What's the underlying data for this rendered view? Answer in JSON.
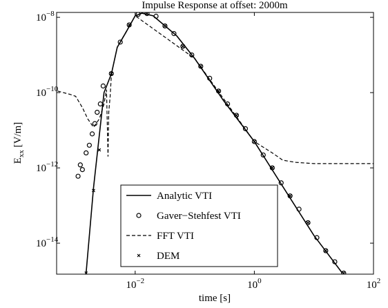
{
  "chart_data": {
    "type": "line",
    "title": "Impulse Response at offset: 2000m",
    "xlabel": "time [s]",
    "ylabel": "Exx  [V/m]",
    "xscale": "log",
    "yscale": "log",
    "xlim": [
      0.00048,
      100
    ],
    "ylim": [
      1.5e-15,
      1.35e-08
    ],
    "xticks": [
      {
        "value": 0.01,
        "label": "10−2"
      },
      {
        "value": 1,
        "label": "100"
      },
      {
        "value": 100,
        "label": "102"
      }
    ],
    "yticks": [
      {
        "value": 1e-14,
        "label": "10−14"
      },
      {
        "value": 1e-12,
        "label": "10−12"
      },
      {
        "value": 1e-10,
        "label": "10−10"
      },
      {
        "value": 1e-08,
        "label": "10−8"
      }
    ],
    "legend": "lower center",
    "series": [
      {
        "name": "Analytic VTI",
        "color": "#000000",
        "style": "solid",
        "x": [
          0.0015,
          0.002,
          0.003,
          0.004,
          0.005,
          0.007,
          0.01,
          0.013,
          0.02,
          0.05,
          0.1,
          0.3,
          1,
          3,
          10,
          30
        ],
        "values": [
          1.6e-15,
          3e-13,
          1e-10,
          3.2e-10,
          1.6e-09,
          4e-09,
          1.1e-08,
          1.29e-08,
          1.1e-08,
          3.2e-09,
          8e-10,
          6.3e-11,
          5e-12,
          3.2e-13,
          1.6e-14,
          1.6e-15
        ]
      },
      {
        "name": "Gaver−Stehfest VTI",
        "color": "#000000",
        "style": "circle",
        "x": [
          0.0011,
          0.0012,
          0.0013,
          0.0015,
          0.0017,
          0.0019,
          0.0021,
          0.0023,
          0.0026,
          0.0029,
          0.00398,
          0.00562,
          0.00794,
          0.0112,
          0.0158,
          0.0224,
          0.0316,
          0.0447,
          0.0631,
          0.0891,
          0.126,
          0.178,
          0.251,
          0.355,
          0.501,
          0.708,
          1,
          1.41,
          2,
          2.82,
          3.98,
          5.62,
          7.94,
          11.2,
          15.8,
          22.4,
          31.6
        ],
        "values": [
          6e-13,
          1.2e-12,
          9e-13,
          2.5e-12,
          4e-12,
          8e-12,
          1.5e-11,
          3e-11,
          5e-11,
          1.5e-10,
          3.2e-10,
          2.2e-09,
          6.3e-09,
          1.2e-08,
          1.26e-08,
          1.07e-08,
          5.9e-09,
          3.7e-09,
          1.7e-09,
          1e-09,
          5e-10,
          2.4e-10,
          1.1e-10,
          5e-11,
          2.5e-11,
          1.1e-11,
          5e-12,
          2.2e-12,
          1e-12,
          4e-13,
          1.8e-13,
          8e-14,
          3.5e-14,
          1.4e-14,
          6.3e-15,
          3.2e-15,
          1.6e-15
        ]
      },
      {
        "name": "FFT VTI",
        "color": "#000000",
        "style": "dashed",
        "x": [
          0.0005,
          0.0008,
          0.001,
          0.0013,
          0.0016,
          0.002,
          0.0025,
          0.003,
          0.0033,
          0.0035,
          0.0036,
          0.0038,
          0.004,
          0.005,
          0.01,
          0.1,
          1,
          2,
          3,
          5,
          10,
          100
        ],
        "values": [
          1.1e-10,
          9e-11,
          8e-11,
          4e-11,
          2e-11,
          1.2e-11,
          2e-11,
          5e-11,
          1.2e-10,
          2e-12,
          3e-11,
          8e-11,
          3.2e-10,
          1.6e-09,
          1.1e-08,
          8e-10,
          5e-12,
          2.5e-12,
          1.6e-12,
          1.4e-12,
          1.3e-12,
          1.3e-12
        ]
      },
      {
        "name": "DEM",
        "color": "#000000",
        "style": "cross",
        "x": [
          0.0015,
          0.002,
          0.0025,
          0.00398,
          0.00794,
          0.0158,
          0.0316,
          0.0631,
          0.126,
          0.251,
          0.501,
          1,
          2,
          3.98,
          7.94,
          15.8,
          31.6
        ],
        "values": [
          1.6e-15,
          2.5e-13,
          3e-12,
          3.2e-10,
          6.3e-09,
          1.26e-08,
          5.9e-09,
          1.7e-09,
          5e-10,
          1.1e-10,
          2.5e-11,
          5e-12,
          1e-12,
          1.8e-13,
          3.5e-14,
          6.3e-15,
          1.6e-15
        ]
      }
    ]
  }
}
